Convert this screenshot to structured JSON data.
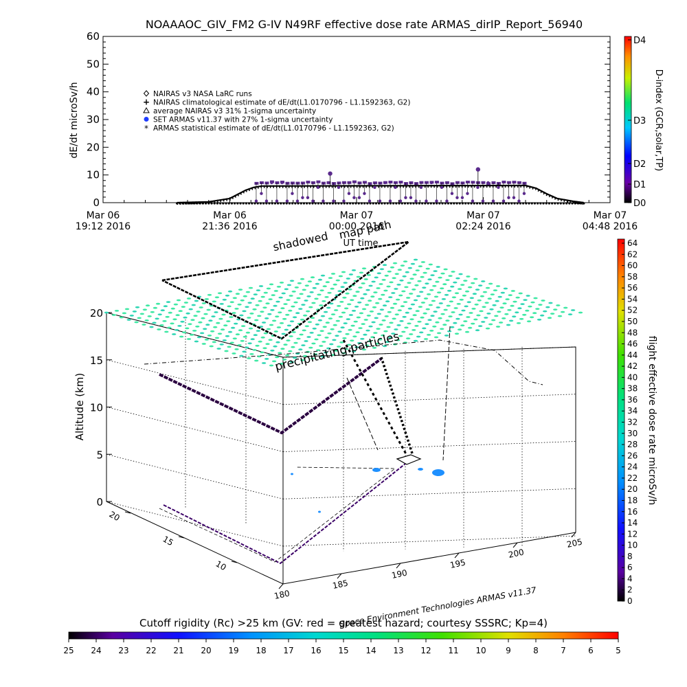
{
  "colors": {
    "flight_marker": "#5a2a8c",
    "nairas_line": "#000000",
    "precip_dot": "#3ee8a4",
    "precip_dot_alt": "#2fd6b4",
    "cyan_patch": "#1e90ff"
  },
  "chart_data": [
    {
      "type": "line",
      "title": "NOAAAOC_GIV_FM2 G-IV    N49RF   effective dose rate ARMAS_dirIP_Report_56940",
      "xlabel": "UT time",
      "ylabel": "dE/dt microSv/h",
      "ylim": [
        0,
        60
      ],
      "y_ticks": [
        "0",
        "10",
        "20",
        "30",
        "40",
        "50",
        "60"
      ],
      "x_ticks": [
        {
          "l1": "Mar 06",
          "l2": "19:12 2016"
        },
        {
          "l1": "Mar 06",
          "l2": "21:36 2016"
        },
        {
          "l1": "Mar 07",
          "l2": "00:00 2016"
        },
        {
          "l1": "Mar 07",
          "l2": "02:24 2016"
        },
        {
          "l1": "Mar 07",
          "l2": "04:48 2016"
        }
      ],
      "x_unit": "hours since Mar 06 19:12 UT",
      "xlim": [
        0,
        9.6
      ],
      "legend": [
        {
          "symbol": "diamond",
          "label": "NAIRAS v3 NASA LaRC runs"
        },
        {
          "symbol": "plus",
          "label": "NAIRAS climatological estimate of dE/dt(L1.0170796 - L1.1592363, G2)"
        },
        {
          "symbol": "triangle",
          "label": "average NAIRAS v3 31% 1-sigma uncertainty"
        },
        {
          "symbol": "dot",
          "label": "SET ARMAS v11.37 with 27% 1-sigma uncertainty"
        },
        {
          "symbol": "asterisk",
          "label": "ARMAS statistical estimate of dE/dt(L1.0170796 - L1.1592363, G2)"
        }
      ],
      "legend_position": "upper-left",
      "series": [
        {
          "name": "NAIRAS climatological estimate",
          "x": [
            1.4,
            2.0,
            2.4,
            2.7,
            2.85,
            3.0,
            8.0,
            8.2,
            8.4,
            8.6,
            8.9,
            9.1
          ],
          "y": [
            0,
            0.3,
            1.5,
            4.5,
            5.5,
            6.0,
            6.2,
            5.2,
            3.2,
            1.5,
            0.5,
            0
          ]
        },
        {
          "name": "ARMAS measured (spikes)",
          "x": [
            4.3,
            7.1
          ],
          "y": [
            10.5,
            12
          ]
        }
      ],
      "d_index_colorbar": {
        "label": "D-index (GCR,solar,TP)",
        "ticks": [
          "D4",
          "D3",
          "D2",
          "D1",
          "D0"
        ]
      }
    },
    {
      "type": "scatter",
      "subtype": "3d flight track",
      "zlabel": "Altitude (km)",
      "z_ticks": [
        "0",
        "5",
        "10",
        "15",
        "20"
      ],
      "x_ticks": [
        "180",
        "185",
        "190",
        "195",
        "200",
        "205"
      ],
      "y_ticks": [
        "10",
        "15",
        "20"
      ],
      "annotations": [
        "shadowed",
        "map path",
        "precipitating particles"
      ],
      "footer": "Space Environment Technologies ARMAS v11.37",
      "dose_colorbar": {
        "label": "flight effective dose rate microSv/h",
        "ticks": [
          "64",
          "62",
          "60",
          "58",
          "56",
          "54",
          "52",
          "50",
          "48",
          "46",
          "44",
          "42",
          "40",
          "38",
          "36",
          "34",
          "32",
          "30",
          "28",
          "26",
          "24",
          "22",
          "20",
          "18",
          "16",
          "14",
          "12",
          "10",
          "8",
          "6",
          "4",
          "2",
          "0"
        ]
      },
      "rigidity_colorbar": {
        "title": "Cutoff rigidity (Rc) >25 km (GV: red = greatest hazard; courtesy SSSRC; Kp=4)",
        "ticks": [
          "25",
          "24",
          "23",
          "22",
          "21",
          "20",
          "19",
          "18",
          "17",
          "16",
          "15",
          "14",
          "13",
          "12",
          "11",
          "10",
          "9",
          "8",
          "7",
          "6",
          "5"
        ]
      }
    }
  ]
}
